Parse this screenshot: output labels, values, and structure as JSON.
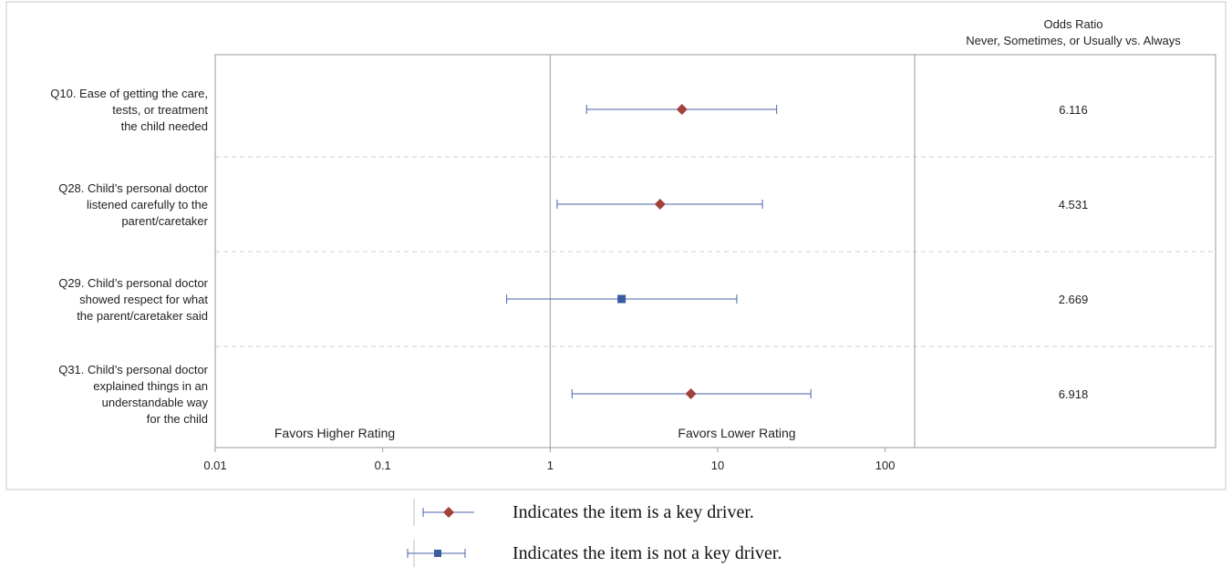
{
  "chart_data": {
    "type": "forest",
    "x_scale": "log",
    "xlim": [
      0.01,
      150
    ],
    "x_ticks": [
      "0.01",
      "0.1",
      "1",
      "10",
      "100"
    ],
    "x_tick_values": [
      0.01,
      0.1,
      1,
      10,
      100
    ],
    "reference_line": 1,
    "column_header": [
      "Odds Ratio",
      "Never, Sometimes, or Usually vs. Always"
    ],
    "left_annotation": "Favors Higher Rating",
    "right_annotation": "Favors Lower Rating",
    "grid": "horizontal dashed separators between items",
    "items": [
      {
        "label_lines": [
          "Q10. Ease of getting the care,",
          "tests, or treatment",
          "the child needed"
        ],
        "odds_ratio": 6.116,
        "odds_ratio_text": "6.116",
        "ci_low": 1.65,
        "ci_high": 22.5,
        "key_driver": true
      },
      {
        "label_lines": [
          "Q28. Child’s personal doctor",
          "listened carefully to the",
          "parent/caretaker"
        ],
        "odds_ratio": 4.531,
        "odds_ratio_text": "4.531",
        "ci_low": 1.1,
        "ci_high": 18.5,
        "key_driver": true
      },
      {
        "label_lines": [
          "Q29. Child’s personal doctor",
          "showed respect for what",
          "the parent/caretaker said"
        ],
        "odds_ratio": 2.669,
        "odds_ratio_text": "2.669",
        "ci_low": 0.55,
        "ci_high": 13.0,
        "key_driver": false
      },
      {
        "label_lines": [
          "Q31. Child’s personal doctor",
          "explained things in an",
          "understandable way",
          "for the child"
        ],
        "odds_ratio": 6.918,
        "odds_ratio_text": "6.918",
        "ci_low": 1.35,
        "ci_high": 36.0,
        "key_driver": true
      }
    ]
  },
  "legend": {
    "key_driver_text": "Indicates the item is a key driver.",
    "not_key_driver_text": "Indicates the item is not a key driver."
  },
  "colors": {
    "key_driver_marker": "#A0413A",
    "not_key_driver_marker": "#3B5AA0",
    "ci_line": "#4A63A8",
    "frame": "#9a9a9a",
    "separator": "#cfcfcf"
  }
}
